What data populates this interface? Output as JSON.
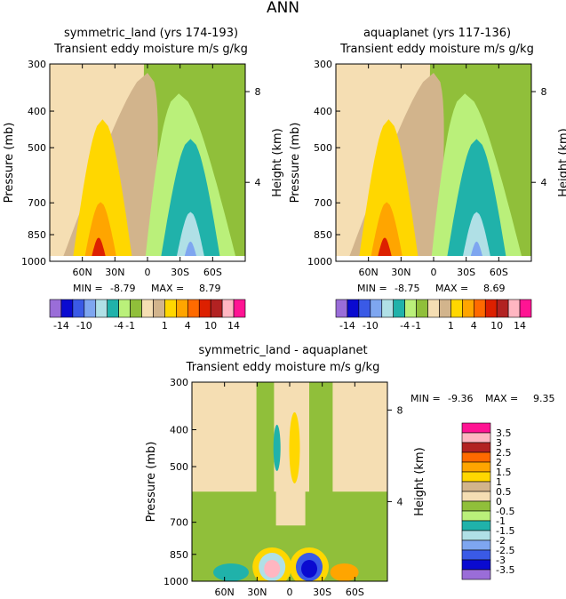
{
  "figure_title": "ANN",
  "units_subtitle": "Transient eddy moisture m/s g/kg",
  "colors": {
    "c_m14": "#9a6dd8",
    "c_m12": "#0a0ad0",
    "c_m10": "#3a5ae6",
    "c_m8": "#7ea6f0",
    "c_m6": "#b0e0e6",
    "c_m4": "#20b2aa",
    "c_m2": "#baf07a",
    "c_m1": "#90bf3a",
    "c_0": "#f5deb3",
    "c_1": "#d2b48c",
    "c_2": "#ffd700",
    "c_4": "#ffa500",
    "c_6": "#ff6a00",
    "c_8": "#dd2000",
    "c_10": "#b22222",
    "c_12": "#ffb6c1",
    "c_14": "#ff1493"
  },
  "chart_data": [
    {
      "id": "panel_symmetric_land",
      "type": "heatmap",
      "title": "symmetric_land (yrs 174-193)",
      "subtitle": "Transient eddy moisture m/s g/kg",
      "ylabel": "Pressure (mb)",
      "ylabel_right": "Height (km)",
      "y_ticks": [
        "300",
        "400",
        "500",
        "700",
        "850",
        "1000"
      ],
      "y_right_ticks": [
        "8",
        "4"
      ],
      "x_ticks": [
        "60N",
        "30N",
        "0",
        "30S",
        "60S"
      ],
      "min_label": "MIN =",
      "min_value": "-8.79",
      "max_label": "MAX =",
      "max_value": "8.79",
      "contour_levels": [
        -14,
        -12,
        -10,
        -8,
        -6,
        -4,
        -2,
        -1,
        0,
        1,
        2,
        4,
        6,
        8,
        10,
        12,
        14
      ],
      "colorbar_labels": [
        "-14",
        "-10",
        "-4",
        "-1",
        "1",
        "4",
        "10",
        "14"
      ]
    },
    {
      "id": "panel_aquaplanet",
      "type": "heatmap",
      "title": "aquaplanet (yrs 117-136)",
      "subtitle": "Transient eddy moisture m/s g/kg",
      "ylabel": "Pressure (mb)",
      "ylabel_right": "Height (km)",
      "y_ticks": [
        "300",
        "400",
        "500",
        "700",
        "850",
        "1000"
      ],
      "y_right_ticks": [
        "8",
        "4"
      ],
      "x_ticks": [
        "60N",
        "30N",
        "0",
        "30S",
        "60S"
      ],
      "min_label": "MIN =",
      "min_value": "-8.75",
      "max_label": "MAX =",
      "max_value": "8.69",
      "contour_levels": [
        -14,
        -12,
        -10,
        -8,
        -6,
        -4,
        -2,
        -1,
        0,
        1,
        2,
        4,
        6,
        8,
        10,
        12,
        14
      ],
      "colorbar_labels": [
        "-14",
        "-10",
        "-4",
        "-1",
        "1",
        "4",
        "10",
        "14"
      ]
    },
    {
      "id": "panel_difference",
      "type": "heatmap",
      "title": "symmetric_land - aquaplanet",
      "subtitle": "Transient eddy moisture m/s g/kg",
      "ylabel": "Pressure (mb)",
      "ylabel_right": "Height (km)",
      "y_ticks": [
        "300",
        "400",
        "500",
        "700",
        "850",
        "1000"
      ],
      "y_right_ticks": [
        "8",
        "4"
      ],
      "x_ticks": [
        "60N",
        "30N",
        "0",
        "30S",
        "60S"
      ],
      "min_label": "MIN =",
      "min_value": "-9.36",
      "max_label": "MAX =",
      "max_value": "9.35",
      "contour_levels": [
        -3.5,
        -3,
        -2.5,
        -2,
        -1.5,
        -1,
        -0.5,
        0,
        0.5,
        1,
        1.5,
        2,
        2.5,
        3,
        3.5
      ],
      "colorbar_labels": [
        "3.5",
        "3",
        "2.5",
        "2",
        "1.5",
        "1",
        "0.5",
        "0",
        "-0.5",
        "-1",
        "-1.5",
        "-2",
        "-2.5",
        "-3",
        "-3.5"
      ]
    }
  ]
}
